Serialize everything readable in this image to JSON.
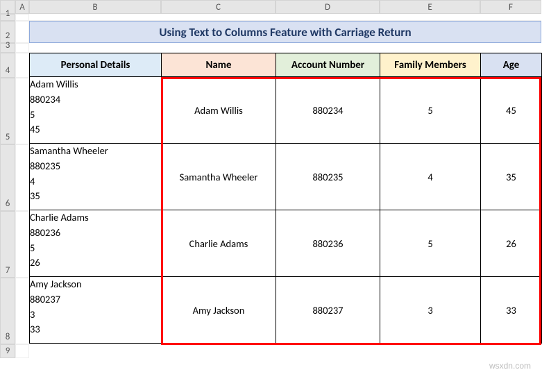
{
  "columns": [
    "A",
    "B",
    "C",
    "D",
    "E",
    "F"
  ],
  "rows": [
    "1",
    "2",
    "3",
    "4",
    "5",
    "6",
    "7",
    "8",
    "9"
  ],
  "title": "Using Text to Columns Feature with Carriage Return",
  "headers": {
    "b": "Personal Details",
    "c": "Name",
    "d": "Account Number",
    "e": "Family Members",
    "f": "Age"
  },
  "data": [
    {
      "pd": "Adam Willis\n880234\n5\n45",
      "name": "Adam Willis",
      "acct": "880234",
      "fam": "5",
      "age": "45"
    },
    {
      "pd": "Samantha Wheeler\n880235\n4\n35",
      "name": "Samantha Wheeler",
      "acct": "880235",
      "fam": "4",
      "age": "35"
    },
    {
      "pd": "Charlie Adams\n880236\n5\n26",
      "name": "Charlie Adams",
      "acct": "880236",
      "fam": "5",
      "age": "26"
    },
    {
      "pd": "Amy Jackson\n880237\n3\n33",
      "name": "Amy Jackson",
      "acct": "880237",
      "fam": "3",
      "age": "33"
    }
  ],
  "col_widths": {
    "b": 190,
    "c": 165,
    "d": 150,
    "e": 145,
    "f": 88
  },
  "watermark": "wsxdn.com",
  "colors": {
    "title_bg": "#d9e1f2",
    "title_border": "#8ea9db",
    "title_text": "#1f3864",
    "th_b": "#ddebf7",
    "th_c": "#fce4d6",
    "th_d": "#e2efda",
    "th_e": "#fff2cc",
    "th_f": "#d9e1f2",
    "highlight_border": "#ff0000"
  }
}
